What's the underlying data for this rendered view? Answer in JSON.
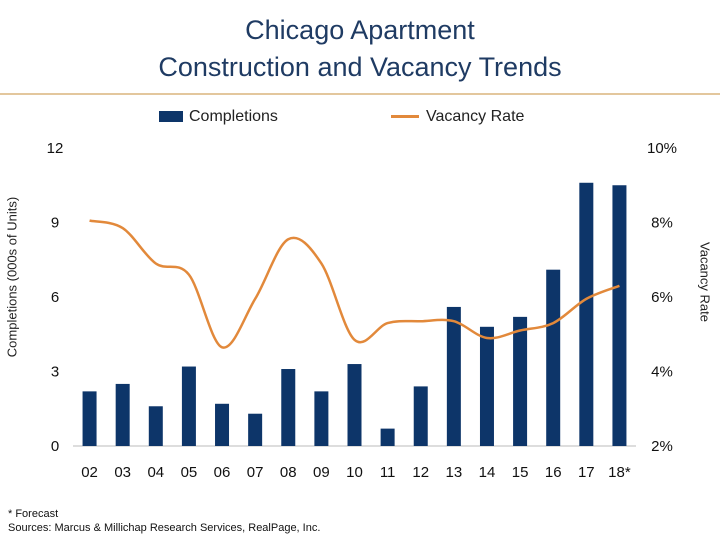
{
  "chart_data": {
    "type": "bar",
    "title": "Chicago Apartment Construction and Vacancy Trends",
    "title_lines": [
      "Chicago Apartment",
      "Construction and Vacancy Trends"
    ],
    "categories": [
      "02",
      "03",
      "04",
      "05",
      "06",
      "07",
      "08",
      "09",
      "10",
      "11",
      "12",
      "13",
      "14",
      "15",
      "16",
      "17",
      "18*"
    ],
    "series": [
      {
        "name": "Completions",
        "type": "bar",
        "axis": "left",
        "color": "#0d3569",
        "values": [
          2.2,
          2.5,
          1.6,
          3.2,
          1.7,
          1.3,
          3.1,
          2.2,
          3.3,
          0.7,
          2.4,
          5.6,
          4.8,
          5.2,
          7.1,
          10.6,
          10.5
        ]
      },
      {
        "name": "Vacancy Rate",
        "type": "line",
        "axis": "right",
        "color": "#e2893b",
        "values": [
          8.05,
          7.85,
          6.9,
          6.6,
          4.65,
          5.95,
          7.55,
          6.9,
          4.85,
          5.3,
          5.35,
          5.35,
          4.9,
          5.1,
          5.3,
          5.95,
          6.3
        ]
      }
    ],
    "ylabel": "Completions (000s of Units)",
    "ylabel_right": "Vacancy Rate",
    "ylim": [
      0,
      12
    ],
    "yticks": [
      "0",
      "3",
      "6",
      "9",
      "12"
    ],
    "ylim_right": [
      2,
      10
    ],
    "yticks_right": [
      "2%",
      "4%",
      "6%",
      "8%",
      "10%"
    ],
    "grid": false,
    "legend_position": "top"
  },
  "legend": {
    "completions": "Completions",
    "vacancy": "Vacancy Rate"
  },
  "footnotes": {
    "forecast": "* Forecast",
    "sources": "Sources: Marcus & Millichap Research Services, RealPage, Inc."
  }
}
